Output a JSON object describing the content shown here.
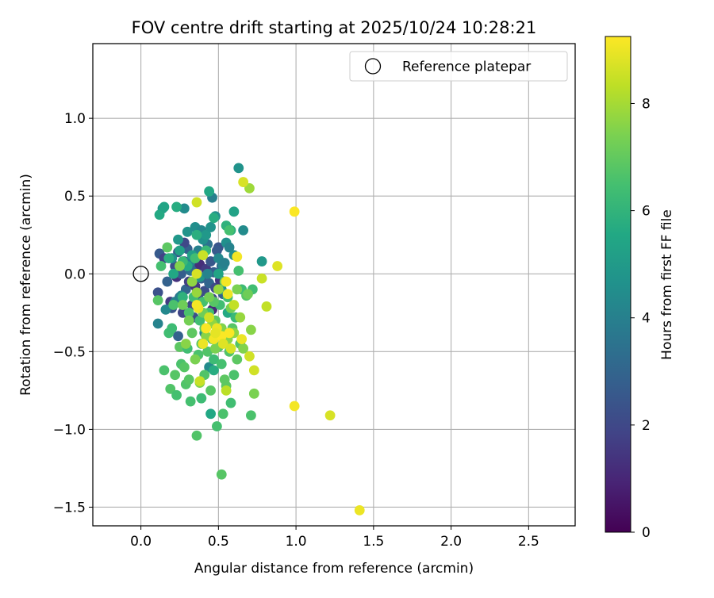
{
  "chart_data": {
    "type": "scatter",
    "title": "FOV centre drift starting at 2025/10/24 10:28:21",
    "xlabel": "Angular distance from reference (arcmin)",
    "ylabel": "Rotation from reference (arcmin)",
    "xlim": [
      -0.31,
      2.8
    ],
    "ylim": [
      -1.62,
      1.48
    ],
    "xticks": [
      0.0,
      0.5,
      1.0,
      1.5,
      2.0,
      2.5
    ],
    "xtick_labels": [
      "0.0",
      "0.5",
      "1.0",
      "1.5",
      "2.0",
      "2.5"
    ],
    "yticks": [
      1.0,
      0.5,
      0.0,
      -0.5,
      -1.0,
      -1.5
    ],
    "ytick_labels": [
      "1.0",
      "0.5",
      "0.0",
      "−0.5",
      "−1.0",
      "−1.5"
    ],
    "grid": true,
    "legend": {
      "position": "top-right",
      "entries": [
        "Reference platepar"
      ]
    },
    "reference_point": {
      "x": 0.0,
      "y": 0.0,
      "label": "Reference platepar"
    },
    "colorbar": {
      "label": "Hours from first FF file",
      "colormap": "viridis",
      "range": [
        0,
        9.25
      ],
      "ticks": [
        0,
        2,
        4,
        6,
        8
      ],
      "tick_labels": [
        "0",
        "2",
        "4",
        "6",
        "8"
      ]
    },
    "points": [
      {
        "x": 0.11,
        "y": -0.12,
        "h": 2.3
      },
      {
        "x": 0.12,
        "y": 0.13,
        "h": 2.6
      },
      {
        "x": 0.15,
        "y": 0.1,
        "h": 1.8
      },
      {
        "x": 0.17,
        "y": -0.05,
        "h": 2.9
      },
      {
        "x": 0.19,
        "y": -0.18,
        "h": 1.6
      },
      {
        "x": 0.2,
        "y": -0.22,
        "h": 2.4
      },
      {
        "x": 0.22,
        "y": 0.05,
        "h": 2.2
      },
      {
        "x": 0.23,
        "y": -0.02,
        "h": 1.3
      },
      {
        "x": 0.24,
        "y": 0.14,
        "h": 2.5
      },
      {
        "x": 0.25,
        "y": -0.15,
        "h": 3.2
      },
      {
        "x": 0.26,
        "y": 0.0,
        "h": 2.7
      },
      {
        "x": 0.27,
        "y": -0.25,
        "h": 1.9
      },
      {
        "x": 0.28,
        "y": 0.08,
        "h": 2.1
      },
      {
        "x": 0.29,
        "y": -0.1,
        "h": 3.0
      },
      {
        "x": 0.3,
        "y": 0.16,
        "h": 2.8
      },
      {
        "x": 0.31,
        "y": -0.05,
        "h": 1.7
      },
      {
        "x": 0.32,
        "y": 0.02,
        "h": 3.4
      },
      {
        "x": 0.33,
        "y": -0.2,
        "h": 2.0
      },
      {
        "x": 0.34,
        "y": 0.1,
        "h": 2.6
      },
      {
        "x": 0.35,
        "y": -0.08,
        "h": 1.5
      },
      {
        "x": 0.36,
        "y": 0.04,
        "h": 3.1
      },
      {
        "x": 0.37,
        "y": -0.14,
        "h": 2.3
      },
      {
        "x": 0.38,
        "y": 0.06,
        "h": 1.2
      },
      {
        "x": 0.39,
        "y": -0.03,
        "h": 2.9
      },
      {
        "x": 0.4,
        "y": 0.12,
        "h": 3.6
      },
      {
        "x": 0.41,
        "y": -0.11,
        "h": 2.2
      },
      {
        "x": 0.42,
        "y": 0.03,
        "h": 1.6
      },
      {
        "x": 0.44,
        "y": -0.06,
        "h": 3.0
      },
      {
        "x": 0.45,
        "y": 0.08,
        "h": 2.5
      },
      {
        "x": 0.46,
        "y": -0.16,
        "h": 1.9
      },
      {
        "x": 0.47,
        "y": 0.01,
        "h": 2.7
      },
      {
        "x": 0.48,
        "y": -0.09,
        "h": 2.1
      },
      {
        "x": 0.5,
        "y": 0.17,
        "h": 2.4
      },
      {
        "x": 0.51,
        "y": -0.04,
        "h": 1.4
      },
      {
        "x": 0.52,
        "y": 0.05,
        "h": 3.3
      },
      {
        "x": 0.53,
        "y": -0.13,
        "h": 2.8
      },
      {
        "x": 0.28,
        "y": 0.2,
        "h": 2.0
      },
      {
        "x": 0.34,
        "y": -0.28,
        "h": 2.2
      },
      {
        "x": 0.43,
        "y": 0.19,
        "h": 3.5
      },
      {
        "x": 0.46,
        "y": -0.23,
        "h": 1.1
      },
      {
        "x": 0.24,
        "y": -0.4,
        "h": 2.9
      },
      {
        "x": 0.49,
        "y": 0.15,
        "h": 2.6
      },
      {
        "x": 0.11,
        "y": -0.32,
        "h": 4.1
      },
      {
        "x": 0.14,
        "y": 0.42,
        "h": 4.8
      },
      {
        "x": 0.16,
        "y": -0.23,
        "h": 4.3
      },
      {
        "x": 0.2,
        "y": 0.1,
        "h": 4.6
      },
      {
        "x": 0.22,
        "y": -0.18,
        "h": 4.0
      },
      {
        "x": 0.24,
        "y": 0.22,
        "h": 4.9
      },
      {
        "x": 0.26,
        "y": -0.14,
        "h": 4.2
      },
      {
        "x": 0.28,
        "y": 0.42,
        "h": 4.4
      },
      {
        "x": 0.3,
        "y": 0.27,
        "h": 4.7
      },
      {
        "x": 0.32,
        "y": 0.08,
        "h": 4.1
      },
      {
        "x": 0.35,
        "y": 0.3,
        "h": 4.5
      },
      {
        "x": 0.37,
        "y": 0.15,
        "h": 4.0
      },
      {
        "x": 0.38,
        "y": -0.02,
        "h": 4.8
      },
      {
        "x": 0.39,
        "y": 0.28,
        "h": 4.3
      },
      {
        "x": 0.4,
        "y": 0.22,
        "h": 4.6
      },
      {
        "x": 0.41,
        "y": -0.38,
        "h": 4.2
      },
      {
        "x": 0.42,
        "y": 0.25,
        "h": 4.9
      },
      {
        "x": 0.43,
        "y": 0.0,
        "h": 4.1
      },
      {
        "x": 0.44,
        "y": -0.6,
        "h": 4.4
      },
      {
        "x": 0.45,
        "y": 0.3,
        "h": 4.7
      },
      {
        "x": 0.46,
        "y": 0.49,
        "h": 4.0
      },
      {
        "x": 0.48,
        "y": 0.37,
        "h": 4.5
      },
      {
        "x": 0.5,
        "y": 0.1,
        "h": 4.3
      },
      {
        "x": 0.52,
        "y": -0.1,
        "h": 4.8
      },
      {
        "x": 0.53,
        "y": 0.05,
        "h": 4.2
      },
      {
        "x": 0.55,
        "y": 0.2,
        "h": 4.6
      },
      {
        "x": 0.57,
        "y": 0.17,
        "h": 4.1
      },
      {
        "x": 0.63,
        "y": 0.68,
        "h": 4.7
      },
      {
        "x": 0.66,
        "y": 0.28,
        "h": 4.4
      },
      {
        "x": 0.78,
        "y": 0.08,
        "h": 4.9
      },
      {
        "x": 0.54,
        "y": 0.07,
        "h": 4.0
      },
      {
        "x": 0.6,
        "y": 0.12,
        "h": 4.5
      },
      {
        "x": 0.12,
        "y": 0.38,
        "h": 5.6
      },
      {
        "x": 0.15,
        "y": 0.43,
        "h": 5.4
      },
      {
        "x": 0.18,
        "y": 0.1,
        "h": 5.8
      },
      {
        "x": 0.21,
        "y": 0.0,
        "h": 5.5
      },
      {
        "x": 0.23,
        "y": 0.43,
        "h": 5.7
      },
      {
        "x": 0.25,
        "y": 0.15,
        "h": 5.3
      },
      {
        "x": 0.27,
        "y": -0.15,
        "h": 5.9
      },
      {
        "x": 0.3,
        "y": 0.05,
        "h": 5.6
      },
      {
        "x": 0.33,
        "y": 0.12,
        "h": 5.2
      },
      {
        "x": 0.36,
        "y": 0.25,
        "h": 5.8
      },
      {
        "x": 0.44,
        "y": 0.53,
        "h": 5.5
      },
      {
        "x": 0.47,
        "y": 0.36,
        "h": 5.7
      },
      {
        "x": 0.5,
        "y": 0.0,
        "h": 5.4
      },
      {
        "x": 0.55,
        "y": 0.31,
        "h": 5.9
      },
      {
        "x": 0.6,
        "y": 0.4,
        "h": 5.3
      },
      {
        "x": 0.56,
        "y": -0.25,
        "h": 5.6
      },
      {
        "x": 0.58,
        "y": 0.28,
        "h": 5.8
      },
      {
        "x": 0.45,
        "y": -0.9,
        "h": 5.5
      },
      {
        "x": 0.47,
        "y": -0.62,
        "h": 5.7
      },
      {
        "x": 0.11,
        "y": -0.17,
        "h": 6.8
      },
      {
        "x": 0.13,
        "y": 0.05,
        "h": 6.5
      },
      {
        "x": 0.15,
        "y": -0.62,
        "h": 6.6
      },
      {
        "x": 0.17,
        "y": 0.17,
        "h": 6.9
      },
      {
        "x": 0.18,
        "y": -0.38,
        "h": 6.4
      },
      {
        "x": 0.19,
        "y": -0.74,
        "h": 6.7
      },
      {
        "x": 0.2,
        "y": -0.35,
        "h": 6.3
      },
      {
        "x": 0.22,
        "y": -0.65,
        "h": 6.8
      },
      {
        "x": 0.23,
        "y": -0.78,
        "h": 6.5
      },
      {
        "x": 0.25,
        "y": -0.47,
        "h": 6.9
      },
      {
        "x": 0.26,
        "y": -0.58,
        "h": 6.6
      },
      {
        "x": 0.27,
        "y": 0.08,
        "h": 6.2
      },
      {
        "x": 0.29,
        "y": -0.71,
        "h": 6.7
      },
      {
        "x": 0.3,
        "y": -0.48,
        "h": 6.4
      },
      {
        "x": 0.31,
        "y": -0.68,
        "h": 6.8
      },
      {
        "x": 0.32,
        "y": -0.82,
        "h": 6.5
      },
      {
        "x": 0.33,
        "y": -0.38,
        "h": 6.9
      },
      {
        "x": 0.34,
        "y": -0.15,
        "h": 6.3
      },
      {
        "x": 0.36,
        "y": -1.04,
        "h": 6.7
      },
      {
        "x": 0.37,
        "y": -0.52,
        "h": 6.6
      },
      {
        "x": 0.38,
        "y": -0.3,
        "h": 6.4
      },
      {
        "x": 0.39,
        "y": -0.45,
        "h": 6.8
      },
      {
        "x": 0.4,
        "y": -0.18,
        "h": 6.5
      },
      {
        "x": 0.41,
        "y": -0.35,
        "h": 6.9
      },
      {
        "x": 0.42,
        "y": 0.15,
        "h": 6.2
      },
      {
        "x": 0.43,
        "y": -0.5,
        "h": 6.7
      },
      {
        "x": 0.44,
        "y": -0.25,
        "h": 6.4
      },
      {
        "x": 0.45,
        "y": -0.75,
        "h": 6.8
      },
      {
        "x": 0.46,
        "y": -0.42,
        "h": 6.6
      },
      {
        "x": 0.47,
        "y": -0.55,
        "h": 6.3
      },
      {
        "x": 0.48,
        "y": -0.3,
        "h": 6.9
      },
      {
        "x": 0.49,
        "y": -0.98,
        "h": 6.5
      },
      {
        "x": 0.5,
        "y": -0.47,
        "h": 6.7
      },
      {
        "x": 0.51,
        "y": -0.2,
        "h": 6.4
      },
      {
        "x": 0.52,
        "y": -1.29,
        "h": 6.8
      },
      {
        "x": 0.53,
        "y": -0.9,
        "h": 6.6
      },
      {
        "x": 0.54,
        "y": -0.38,
        "h": 6.3
      },
      {
        "x": 0.55,
        "y": -0.72,
        "h": 6.9
      },
      {
        "x": 0.56,
        "y": -0.15,
        "h": 6.5
      },
      {
        "x": 0.57,
        "y": -0.5,
        "h": 6.7
      },
      {
        "x": 0.58,
        "y": -0.83,
        "h": 6.4
      },
      {
        "x": 0.59,
        "y": -0.35,
        "h": 6.8
      },
      {
        "x": 0.6,
        "y": -0.65,
        "h": 6.6
      },
      {
        "x": 0.61,
        "y": -0.28,
        "h": 6.2
      },
      {
        "x": 0.62,
        "y": -0.55,
        "h": 6.9
      },
      {
        "x": 0.63,
        "y": 0.02,
        "h": 6.5
      },
      {
        "x": 0.64,
        "y": -0.45,
        "h": 6.7
      },
      {
        "x": 0.65,
        "y": -0.1,
        "h": 6.3
      },
      {
        "x": 0.68,
        "y": -0.14,
        "h": 6.8
      },
      {
        "x": 0.71,
        "y": -0.91,
        "h": 6.6
      },
      {
        "x": 0.72,
        "y": -0.1,
        "h": 6.4
      },
      {
        "x": 0.73,
        "y": -0.77,
        "h": 7.4
      },
      {
        "x": 0.21,
        "y": -0.2,
        "h": 6.6
      },
      {
        "x": 0.28,
        "y": -0.6,
        "h": 6.8
      },
      {
        "x": 0.35,
        "y": 0.1,
        "h": 6.4
      },
      {
        "x": 0.41,
        "y": -0.65,
        "h": 6.7
      },
      {
        "x": 0.52,
        "y": -0.58,
        "h": 6.5
      },
      {
        "x": 0.54,
        "y": -0.68,
        "h": 6.9
      },
      {
        "x": 0.31,
        "y": -0.25,
        "h": 6.6
      },
      {
        "x": 0.39,
        "y": -0.8,
        "h": 6.3
      },
      {
        "x": 0.47,
        "y": -0.18,
        "h": 6.8
      },
      {
        "x": 0.57,
        "y": 0.28,
        "h": 6.5
      },
      {
        "x": 0.25,
        "y": 0.05,
        "h": 7.5
      },
      {
        "x": 0.27,
        "y": -0.2,
        "h": 7.2
      },
      {
        "x": 0.29,
        "y": -0.45,
        "h": 7.6
      },
      {
        "x": 0.31,
        "y": -0.3,
        "h": 7.3
      },
      {
        "x": 0.33,
        "y": -0.05,
        "h": 7.7
      },
      {
        "x": 0.35,
        "y": -0.55,
        "h": 7.4
      },
      {
        "x": 0.36,
        "y": -0.12,
        "h": 7.8
      },
      {
        "x": 0.38,
        "y": -0.7,
        "h": 7.5
      },
      {
        "x": 0.4,
        "y": -0.25,
        "h": 7.2
      },
      {
        "x": 0.42,
        "y": -0.4,
        "h": 7.6
      },
      {
        "x": 0.44,
        "y": -0.15,
        "h": 7.3
      },
      {
        "x": 0.46,
        "y": -0.32,
        "h": 7.7
      },
      {
        "x": 0.48,
        "y": -0.48,
        "h": 7.4
      },
      {
        "x": 0.5,
        "y": -0.1,
        "h": 7.8
      },
      {
        "x": 0.52,
        "y": -0.35,
        "h": 7.5
      },
      {
        "x": 0.54,
        "y": -0.05,
        "h": 7.2
      },
      {
        "x": 0.56,
        "y": -0.42,
        "h": 7.6
      },
      {
        "x": 0.58,
        "y": -0.22,
        "h": 7.3
      },
      {
        "x": 0.6,
        "y": -0.38,
        "h": 7.7
      },
      {
        "x": 0.62,
        "y": -0.1,
        "h": 7.4
      },
      {
        "x": 0.64,
        "y": -0.28,
        "h": 7.8
      },
      {
        "x": 0.66,
        "y": -0.48,
        "h": 7.5
      },
      {
        "x": 0.69,
        "y": -0.13,
        "h": 7.2
      },
      {
        "x": 0.71,
        "y": -0.36,
        "h": 7.6
      },
      {
        "x": 0.7,
        "y": 0.55,
        "h": 7.9
      },
      {
        "x": 0.73,
        "y": -0.62,
        "h": 8.6
      },
      {
        "x": 0.78,
        "y": -0.03,
        "h": 8.5
      },
      {
        "x": 0.81,
        "y": -0.21,
        "h": 8.4
      },
      {
        "x": 0.88,
        "y": 0.05,
        "h": 8.8
      },
      {
        "x": 0.66,
        "y": 0.59,
        "h": 8.7
      },
      {
        "x": 0.38,
        "y": -0.69,
        "h": 8.5
      },
      {
        "x": 0.36,
        "y": 0.46,
        "h": 8.6
      },
      {
        "x": 0.55,
        "y": -0.75,
        "h": 8.3
      },
      {
        "x": 0.7,
        "y": -0.53,
        "h": 8.6
      },
      {
        "x": 0.36,
        "y": 0.0,
        "h": 8.7
      },
      {
        "x": 0.37,
        "y": -0.22,
        "h": 9.0
      },
      {
        "x": 0.36,
        "y": -0.2,
        "h": 9.1
      },
      {
        "x": 0.4,
        "y": -0.45,
        "h": 9.0
      },
      {
        "x": 0.42,
        "y": -0.35,
        "h": 9.2
      },
      {
        "x": 0.47,
        "y": -0.42,
        "h": 9.1
      },
      {
        "x": 0.49,
        "y": -0.35,
        "h": 9.0
      },
      {
        "x": 0.52,
        "y": -0.4,
        "h": 9.2
      },
      {
        "x": 0.55,
        "y": -0.05,
        "h": 9.1
      },
      {
        "x": 0.56,
        "y": -0.13,
        "h": 9.0
      },
      {
        "x": 0.57,
        "y": -0.38,
        "h": 9.2
      },
      {
        "x": 0.62,
        "y": 0.11,
        "h": 9.1
      },
      {
        "x": 0.65,
        "y": -0.42,
        "h": 9.0
      },
      {
        "x": 0.99,
        "y": 0.4,
        "h": 9.2
      },
      {
        "x": 0.99,
        "y": -0.85,
        "h": 9.1
      },
      {
        "x": 1.22,
        "y": -0.91,
        "h": 8.7
      },
      {
        "x": 1.41,
        "y": -1.52,
        "h": 9.0
      },
      {
        "x": 0.48,
        "y": -0.38,
        "h": 8.9
      },
      {
        "x": 0.53,
        "y": -0.45,
        "h": 8.8
      },
      {
        "x": 0.44,
        "y": -0.28,
        "h": 8.6
      },
      {
        "x": 0.6,
        "y": -0.2,
        "h": 8.4
      },
      {
        "x": 0.4,
        "y": 0.12,
        "h": 8.5
      },
      {
        "x": 0.58,
        "y": -0.48,
        "h": 8.7
      }
    ]
  }
}
